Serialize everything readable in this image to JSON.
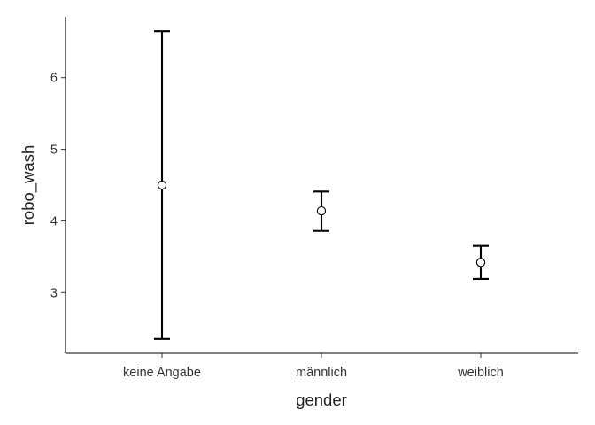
{
  "chart_data": {
    "type": "scatter",
    "subtype": "point-with-error-bars",
    "xlabel": "gender",
    "ylabel": "robo_wash",
    "categories": [
      "keine Angabe",
      "männlich",
      "weiblich"
    ],
    "series": [
      {
        "mean": [
          4.5,
          4.14,
          3.42
        ],
        "lower": [
          2.35,
          3.86,
          3.19
        ],
        "upper": [
          6.65,
          4.41,
          3.65
        ]
      }
    ],
    "yticks": [
      3,
      4,
      5,
      6
    ],
    "ylim": [
      2.15,
      6.85
    ],
    "grid": false,
    "legend": "none",
    "colors": {
      "line": "#000000",
      "point_fill": "#ffffff",
      "text": "#333333"
    }
  }
}
